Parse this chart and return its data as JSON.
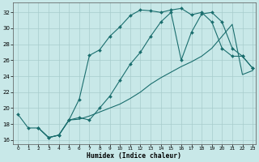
{
  "xlabel": "Humidex (Indice chaleur)",
  "bg_color": "#c8e8e8",
  "grid_color": "#a8cccc",
  "line_color": "#1a6e6e",
  "xlim_min": -0.5,
  "xlim_max": 23.3,
  "ylim_min": 15.5,
  "ylim_max": 33.2,
  "yticks": [
    16,
    18,
    20,
    22,
    24,
    26,
    28,
    30,
    32
  ],
  "xticks": [
    0,
    1,
    2,
    3,
    4,
    5,
    6,
    7,
    8,
    9,
    10,
    11,
    12,
    13,
    14,
    15,
    16,
    17,
    18,
    19,
    20,
    21,
    22,
    23
  ],
  "curve1_x": [
    0,
    1,
    2,
    3,
    4,
    5,
    6,
    7,
    8,
    9,
    10,
    11,
    12,
    13,
    14,
    15,
    16,
    17,
    18,
    19,
    20,
    21,
    22,
    23
  ],
  "curve1_y": [
    19.2,
    17.5,
    17.5,
    16.3,
    16.6,
    18.5,
    21.1,
    26.6,
    27.3,
    29.0,
    30.2,
    31.6,
    32.3,
    32.2,
    32.0,
    32.3,
    32.5,
    31.7,
    32.0,
    30.8,
    27.5,
    26.5,
    26.5,
    25.0
  ],
  "curve2_x": [
    2,
    3,
    4,
    5,
    6,
    7,
    8,
    9,
    10,
    11,
    12,
    13,
    14,
    15,
    16,
    17,
    18,
    19,
    20,
    21,
    22,
    23
  ],
  "curve2_y": [
    17.5,
    16.3,
    16.6,
    18.5,
    18.8,
    18.5,
    20.0,
    21.5,
    23.5,
    25.5,
    27.0,
    29.0,
    30.8,
    32.0,
    26.0,
    29.5,
    31.8,
    32.0,
    30.8,
    27.5,
    26.5,
    25.0
  ],
  "curve3_x": [
    2,
    3,
    4,
    5,
    6,
    7,
    8,
    9,
    10,
    11,
    12,
    13,
    14,
    15,
    16,
    17,
    18,
    19,
    20,
    21,
    22,
    23
  ],
  "curve3_y": [
    17.5,
    16.3,
    16.6,
    18.5,
    18.6,
    19.0,
    19.5,
    20.0,
    20.5,
    21.2,
    22.0,
    23.0,
    23.8,
    24.5,
    25.2,
    25.8,
    26.5,
    27.5,
    29.0,
    30.5,
    24.2,
    24.7
  ]
}
